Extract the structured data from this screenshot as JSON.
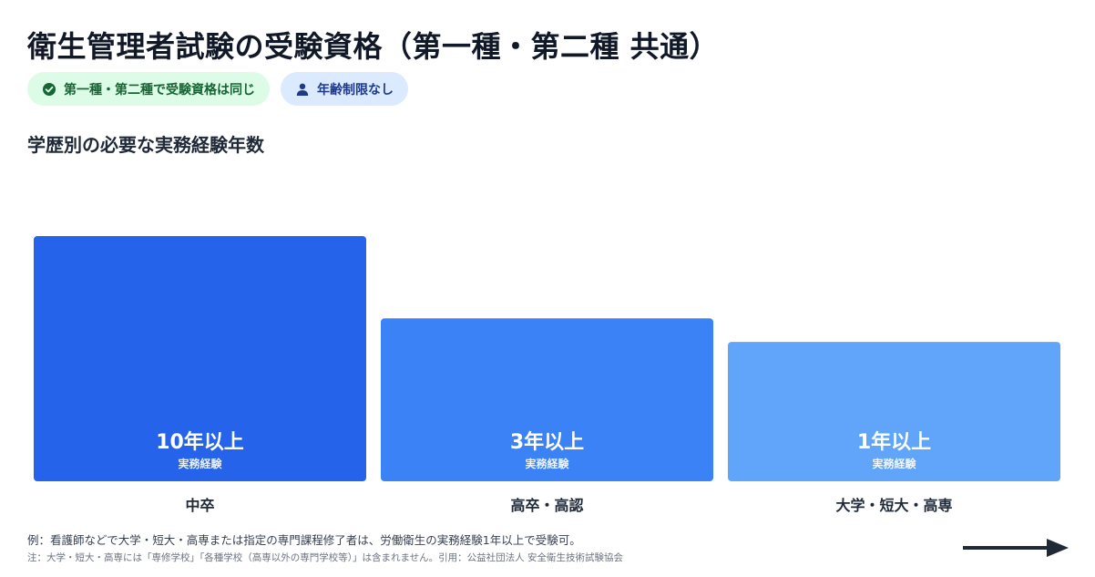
{
  "title": "衛生管理者試験の受験資格（第一種・第二種 共通）",
  "badges": [
    {
      "label": "第一種・第二種で受験資格は同じ",
      "icon": "check-circle-icon"
    },
    {
      "label": "年齢制限なし",
      "icon": "person-icon"
    }
  ],
  "subtitle": "学歴別の必要な実務経験年数",
  "colors": {
    "bar1": "#2563eb",
    "bar2": "#3b82f6",
    "bar3": "#60a5fa",
    "badge_green_bg": "#dcfce7",
    "badge_blue_bg": "#dbeafe",
    "arrow": "#1f2937"
  },
  "chart_data": {
    "type": "bar",
    "categories": [
      "中卒",
      "高卒・高認",
      "大学・短大・高専"
    ],
    "values": [
      10,
      3,
      1
    ],
    "value_labels": [
      "10年以上",
      "3年以上",
      "1年以上"
    ],
    "bar_caption": "実務経験",
    "unit": "年"
  },
  "notes": {
    "line1": "例：看護師などで大学・短大・高専または指定の専門課程修了者は、労働衛生の実務経験1年以上で受験可。",
    "line2": "注：大学・短大・高専には「専修学校」「各種学校（高専以外の専門学校等）」は含まれません。引用：公益社団法人 安全衛生技術試験協会"
  }
}
